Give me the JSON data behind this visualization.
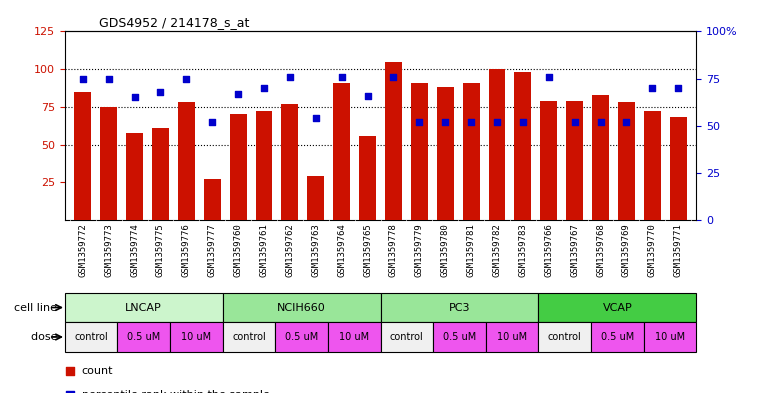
{
  "title": "GDS4952 / 214178_s_at",
  "samples": [
    "GSM1359772",
    "GSM1359773",
    "GSM1359774",
    "GSM1359775",
    "GSM1359776",
    "GSM1359777",
    "GSM1359760",
    "GSM1359761",
    "GSM1359762",
    "GSM1359763",
    "GSM1359764",
    "GSM1359765",
    "GSM1359778",
    "GSM1359779",
    "GSM1359780",
    "GSM1359781",
    "GSM1359782",
    "GSM1359783",
    "GSM1359766",
    "GSM1359767",
    "GSM1359768",
    "GSM1359769",
    "GSM1359770",
    "GSM1359771"
  ],
  "counts": [
    85,
    75,
    58,
    61,
    78,
    27,
    70,
    72,
    77,
    29,
    91,
    56,
    105,
    91,
    88,
    91,
    100,
    98,
    79,
    79,
    83,
    78,
    72,
    68
  ],
  "percentiles": [
    75,
    75,
    65,
    68,
    75,
    52,
    67,
    70,
    76,
    54,
    76,
    66,
    76,
    52,
    52,
    52,
    52,
    52,
    76,
    52,
    52,
    52,
    70,
    70
  ],
  "cell_lines": [
    {
      "name": "LNCAP",
      "start": 0,
      "end": 6,
      "color": "#ccf5cc"
    },
    {
      "name": "NCIH660",
      "start": 6,
      "end": 12,
      "color": "#99e699"
    },
    {
      "name": "PC3",
      "start": 12,
      "end": 18,
      "color": "#99e699"
    },
    {
      "name": "VCAP",
      "start": 18,
      "end": 24,
      "color": "#44cc44"
    }
  ],
  "doses": [
    {
      "name": "control",
      "start": 0,
      "end": 2
    },
    {
      "name": "0.5 uM",
      "start": 2,
      "end": 4
    },
    {
      "name": "10 uM",
      "start": 4,
      "end": 6
    },
    {
      "name": "control",
      "start": 6,
      "end": 8
    },
    {
      "name": "0.5 uM",
      "start": 8,
      "end": 10
    },
    {
      "name": "10 uM",
      "start": 10,
      "end": 12
    },
    {
      "name": "control",
      "start": 12,
      "end": 14
    },
    {
      "name": "0.5 uM",
      "start": 14,
      "end": 16
    },
    {
      "name": "10 uM",
      "start": 16,
      "end": 18
    },
    {
      "name": "control",
      "start": 18,
      "end": 20
    },
    {
      "name": "0.5 uM",
      "start": 20,
      "end": 22
    },
    {
      "name": "10 uM",
      "start": 22,
      "end": 24
    }
  ],
  "bar_color": "#cc1100",
  "dot_color": "#0000cc",
  "ylim_left": [
    0,
    125
  ],
  "ylim_right": [
    0,
    100
  ],
  "yticks_left": [
    25,
    50,
    75,
    100,
    125
  ],
  "yticks_right": [
    0,
    25,
    50,
    75,
    100
  ],
  "ytick_labels_right": [
    "0",
    "25",
    "50",
    "75",
    "100%"
  ],
  "grid_lines": [
    50,
    75,
    100
  ],
  "xticklabel_bg": "#d4d4d4",
  "dose_control_color": "#f0f0f0",
  "dose_pink_color": "#ee55ee",
  "bg_color": "#ffffff"
}
